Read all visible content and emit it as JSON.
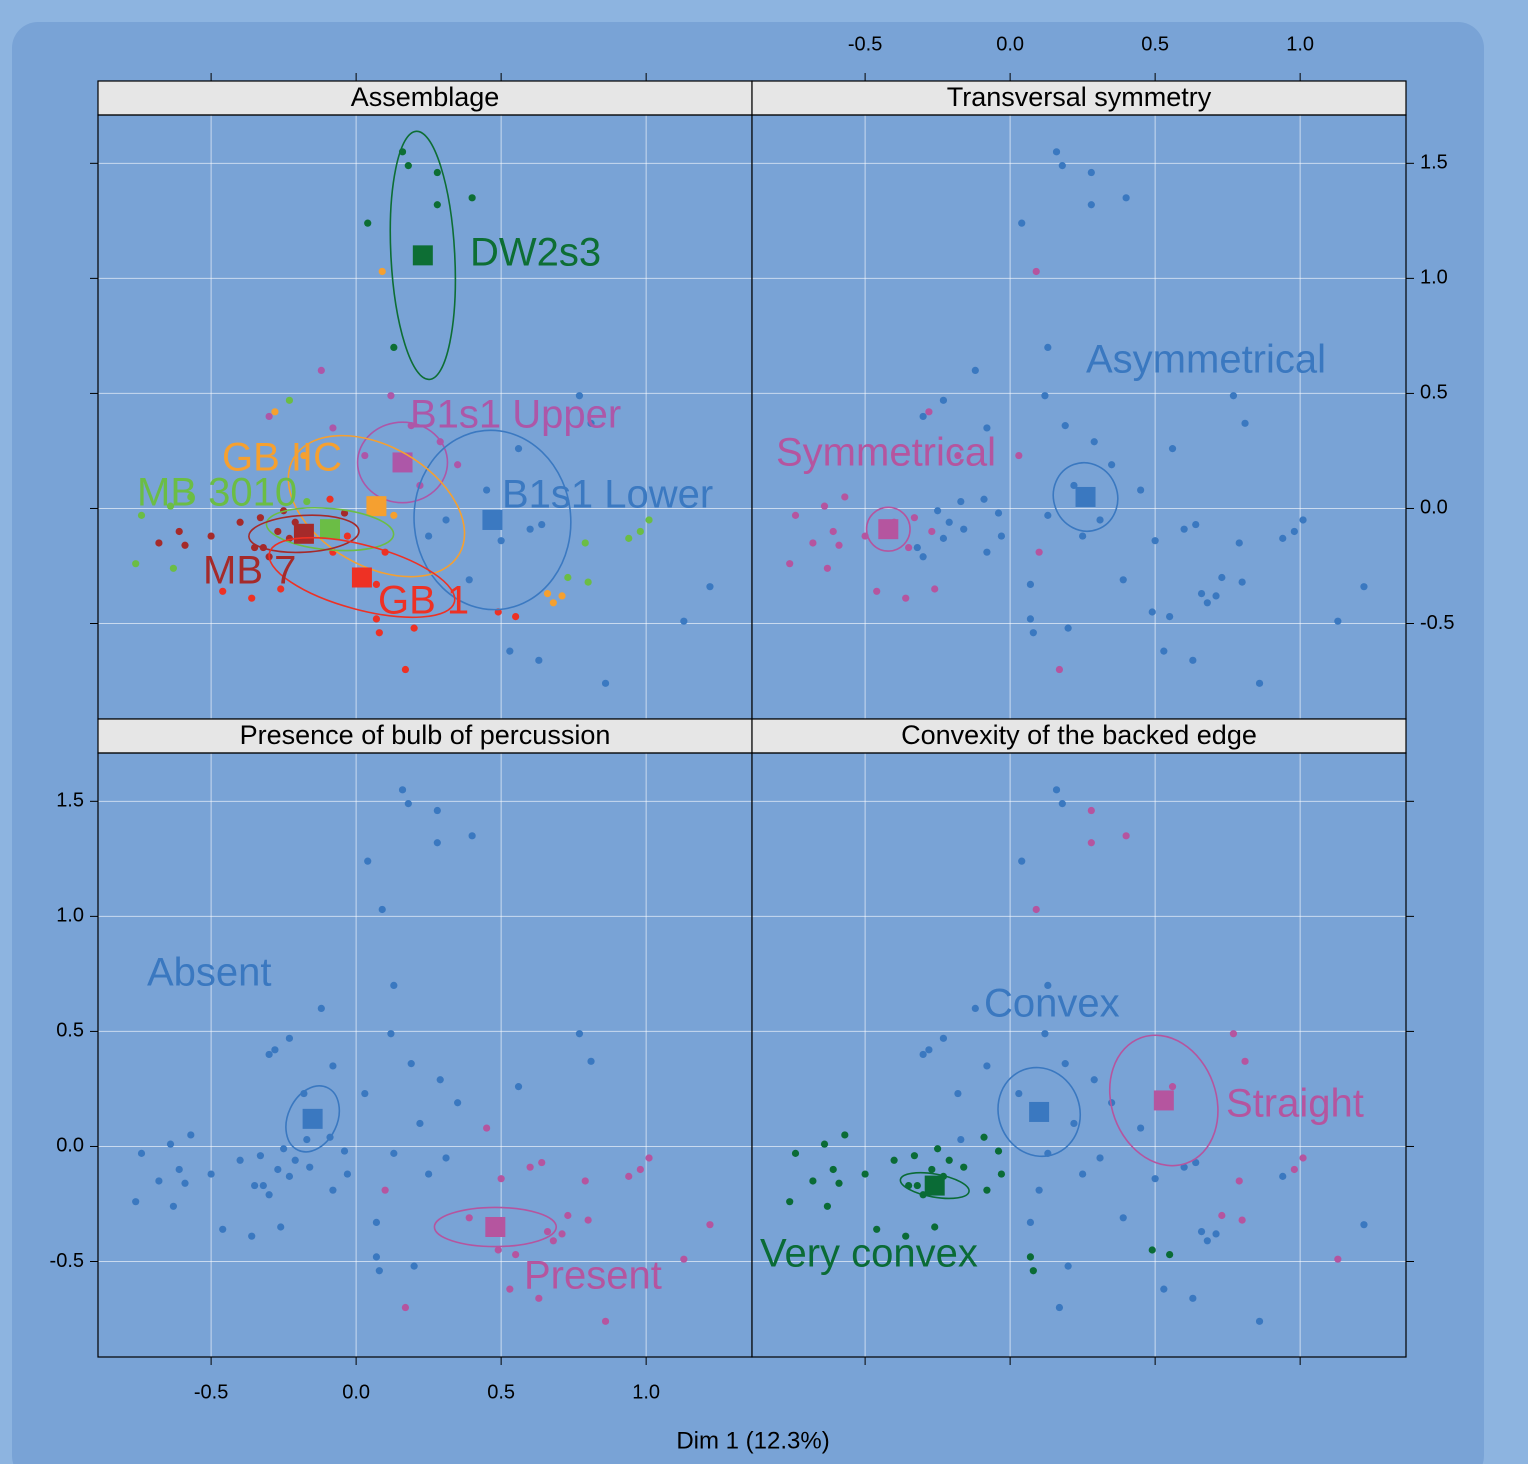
{
  "chart_data": [
    {
      "type": "scatter",
      "title": "Assemblage",
      "xlim": [
        -0.89,
        1.365
      ],
      "ylim": [
        -0.915,
        1.71
      ],
      "xticks": [
        -0.5,
        {
          "value": 0,
          "label": "0.0"
        },
        0.5,
        {
          "value": 1,
          "label": "1.0"
        }
      ],
      "yticks": [
        -0.5,
        {
          "value": 0,
          "label": "0.0"
        },
        0.5,
        {
          "value": 1,
          "label": "1.0"
        },
        1.5
      ],
      "grid": true,
      "series": [
        {
          "name": "DW2s3",
          "color": "#0d6e34",
          "x": [
            0.16,
            0.18,
            0.28,
            0.28,
            0.4,
            0.04,
            0.13
          ],
          "y": [
            1.55,
            1.49,
            1.46,
            1.32,
            1.35,
            1.24,
            0.7
          ],
          "center": [
            0.23,
            1.1
          ],
          "ellipse": {
            "rx": 0.11,
            "ry": 0.54,
            "angle": 3
          }
        },
        {
          "name": "B1s1 Upper",
          "color": "#ad57a8",
          "x": [
            -0.12,
            0.12,
            -0.3,
            -0.08,
            0.19,
            0.29,
            0.35,
            0.22,
            0.03
          ],
          "y": [
            0.6,
            0.49,
            0.4,
            0.35,
            0.36,
            0.29,
            0.19,
            0.1,
            0.23
          ],
          "center": [
            0.16,
            0.2
          ],
          "ellipse": {
            "rx": 0.155,
            "ry": 0.175,
            "angle": 0
          }
        },
        {
          "name": "B1s1 Lower",
          "color": "#3b79c1",
          "x": [
            0.77,
            0.81,
            0.56,
            0.45,
            0.31,
            0.25,
            0.6,
            0.64,
            0.5,
            0.39,
            0.53,
            0.63,
            0.86,
            1.13,
            1.22
          ],
          "y": [
            0.49,
            0.37,
            0.26,
            0.08,
            -0.05,
            -0.12,
            -0.09,
            -0.07,
            -0.14,
            -0.31,
            -0.62,
            -0.66,
            -0.76,
            -0.49,
            -0.34
          ],
          "center": [
            0.47,
            -0.05
          ],
          "ellipse": {
            "rx": 0.27,
            "ry": 0.39,
            "angle": 5
          }
        },
        {
          "name": "GB IIC",
          "color": "#f5a030",
          "x": [
            0.09,
            -0.28,
            -0.18,
            0.13,
            0.66,
            0.68,
            0.71
          ],
          "y": [
            1.03,
            0.42,
            0.23,
            -0.03,
            -0.37,
            -0.41,
            -0.38
          ],
          "center": [
            0.07,
            0.01
          ],
          "ellipse": {
            "rx": 0.33,
            "ry": 0.26,
            "angle": -30
          }
        },
        {
          "name": "MB 3010",
          "color": "#6bbd45",
          "x": [
            -0.57,
            -0.64,
            -0.74,
            -0.76,
            -0.63,
            -0.23,
            1.01,
            0.98,
            0.94,
            0.79,
            0.73,
            0.8,
            -0.17,
            -0.16
          ],
          "y": [
            0.05,
            0.01,
            -0.03,
            -0.24,
            -0.26,
            0.47,
            -0.05,
            -0.1,
            -0.13,
            -0.15,
            -0.3,
            -0.32,
            0.03,
            -0.09
          ],
          "center": [
            -0.09,
            -0.09
          ],
          "ellipse": {
            "rx": 0.22,
            "ry": 0.09,
            "angle": -5
          }
        },
        {
          "name": "MB 7",
          "color": "#a52a2a",
          "x": [
            -0.61,
            -0.68,
            -0.59,
            -0.5,
            -0.4,
            -0.35,
            -0.27,
            -0.33,
            -0.25,
            -0.04,
            -0.23,
            -0.21,
            -0.32,
            -0.3
          ],
          "y": [
            -0.1,
            -0.15,
            -0.16,
            -0.12,
            -0.06,
            -0.17,
            -0.1,
            -0.04,
            -0.01,
            -0.02,
            -0.13,
            -0.06,
            -0.17,
            -0.21
          ],
          "center": [
            -0.18,
            -0.11
          ],
          "ellipse": {
            "rx": 0.19,
            "ry": 0.08,
            "angle": 3
          }
        },
        {
          "name": "GB 1",
          "color": "#ee3124",
          "x": [
            -0.46,
            -0.36,
            -0.26,
            0.1,
            0.17,
            0.07,
            0.07,
            0.2,
            0.08,
            0.49,
            0.55,
            -0.08,
            -0.09,
            -0.03
          ],
          "y": [
            -0.36,
            -0.39,
            -0.35,
            -0.19,
            -0.7,
            -0.33,
            -0.48,
            -0.52,
            -0.54,
            -0.45,
            -0.47,
            -0.19,
            0.04,
            -0.12
          ],
          "center": [
            0.02,
            -0.3
          ],
          "ellipse": {
            "rx": 0.33,
            "ry": 0.14,
            "angle": -15
          }
        }
      ]
    },
    {
      "type": "scatter",
      "title": "Transversal symmetry",
      "xlim": [
        -0.89,
        1.365
      ],
      "ylim": [
        -0.915,
        1.71
      ],
      "xticks": [
        -0.5,
        {
          "value": 0,
          "label": "0.0"
        },
        0.5,
        {
          "value": 1,
          "label": "1.0"
        }
      ],
      "yticks": [
        -0.5,
        {
          "value": 0,
          "label": "0.0"
        },
        0.5,
        {
          "value": 1,
          "label": "1.0"
        },
        1.5
      ],
      "grid": true,
      "series": [
        {
          "name": "Asymmetrical",
          "color": "#3a78c0",
          "x": [
            0.16,
            0.18,
            0.28,
            0.28,
            0.4,
            0.04,
            0.13,
            -0.12,
            0.12,
            0.77,
            0.81,
            -0.23,
            -0.3,
            -0.08,
            0.19,
            0.29,
            0.35,
            0.56,
            0.22,
            0.45,
            0.31,
            0.13,
            0.25,
            0.6,
            0.64,
            1.01,
            0.98,
            0.94,
            0.79,
            0.5,
            0.07,
            0.07,
            0.2,
            0.08,
            0.39,
            0.49,
            0.55,
            0.73,
            0.8,
            0.66,
            0.68,
            0.71,
            0.53,
            0.63,
            0.86,
            1.13,
            1.22,
            -0.08,
            -0.17,
            -0.25,
            -0.04,
            -0.09,
            -0.16,
            -0.23,
            -0.21,
            -0.32,
            -0.3,
            -0.03
          ],
          "y": [
            1.55,
            1.49,
            1.46,
            1.32,
            1.35,
            1.24,
            0.7,
            0.6,
            0.49,
            0.49,
            0.37,
            0.47,
            0.4,
            0.35,
            0.36,
            0.29,
            0.19,
            0.26,
            0.1,
            0.08,
            -0.05,
            -0.03,
            -0.12,
            -0.09,
            -0.07,
            -0.05,
            -0.1,
            -0.13,
            -0.15,
            -0.14,
            -0.33,
            -0.48,
            -0.52,
            -0.54,
            -0.31,
            -0.45,
            -0.47,
            -0.3,
            -0.32,
            -0.37,
            -0.41,
            -0.38,
            -0.62,
            -0.66,
            -0.76,
            -0.49,
            -0.34,
            -0.19,
            0.03,
            -0.01,
            -0.02,
            0.04,
            -0.09,
            -0.13,
            -0.06,
            -0.17,
            -0.21,
            -0.12
          ],
          "center": [
            0.26,
            0.05
          ],
          "ellipse": {
            "rx": 0.11,
            "ry": 0.15,
            "angle": 20
          }
        },
        {
          "name": "Symmetrical",
          "color": "#b5559f",
          "x": [
            0.09,
            -0.28,
            -0.18,
            -0.57,
            -0.64,
            -0.74,
            -0.61,
            -0.68,
            -0.59,
            -0.76,
            -0.63,
            -0.5,
            -0.4,
            -0.35,
            -0.46,
            -0.36,
            -0.26,
            0.1,
            0.17,
            -0.27,
            -0.33,
            0.03
          ],
          "y": [
            1.03,
            0.42,
            0.23,
            0.05,
            0.01,
            -0.03,
            -0.1,
            -0.15,
            -0.16,
            -0.24,
            -0.26,
            -0.12,
            -0.06,
            -0.17,
            -0.36,
            -0.39,
            -0.35,
            -0.19,
            -0.7,
            -0.1,
            -0.04,
            0.23
          ],
          "center": [
            -0.42,
            -0.09
          ],
          "ellipse": {
            "rx": 0.075,
            "ry": 0.095,
            "angle": 0
          }
        }
      ]
    },
    {
      "type": "scatter",
      "title": "Presence of bulb of percussion",
      "xlabel": "Dim 1 (12.3%)",
      "xlim": [
        -0.89,
        1.365
      ],
      "ylim": [
        -0.915,
        1.71
      ],
      "xticks": [
        -0.5,
        {
          "value": 0,
          "label": "0.0"
        },
        0.5,
        {
          "value": 1,
          "label": "1.0"
        }
      ],
      "yticks": [
        -0.5,
        {
          "value": 0,
          "label": "0.0"
        },
        0.5,
        {
          "value": 1,
          "label": "1.0"
        },
        1.5
      ],
      "grid": true,
      "series": [
        {
          "name": "Absent",
          "color": "#3a78c0",
          "x": [
            0.16,
            0.18,
            0.28,
            0.28,
            0.4,
            0.04,
            0.13,
            -0.12,
            0.12,
            0.77,
            0.81,
            -0.23,
            -0.3,
            -0.08,
            0.19,
            0.29,
            0.35,
            0.56,
            0.22,
            0.31,
            0.13,
            0.25,
            0.07,
            0.07,
            0.2,
            0.08,
            -0.08,
            -0.17,
            -0.25,
            -0.04,
            -0.09,
            -0.16,
            -0.23,
            -0.21,
            -0.32,
            -0.3,
            -0.03,
            0.09,
            -0.28,
            -0.18,
            -0.57,
            -0.64,
            -0.74,
            -0.61,
            -0.68,
            -0.59,
            -0.76,
            -0.63,
            -0.5,
            -0.4,
            -0.35,
            -0.46,
            -0.36,
            -0.26,
            -0.27,
            -0.33,
            0.03
          ],
          "y": [
            1.55,
            1.49,
            1.46,
            1.32,
            1.35,
            1.24,
            0.7,
            0.6,
            0.49,
            0.49,
            0.37,
            0.47,
            0.4,
            0.35,
            0.36,
            0.29,
            0.19,
            0.26,
            0.1,
            -0.05,
            -0.03,
            -0.12,
            -0.33,
            -0.48,
            -0.52,
            -0.54,
            -0.19,
            0.03,
            -0.01,
            -0.02,
            0.04,
            -0.09,
            -0.13,
            -0.06,
            -0.17,
            -0.21,
            -0.12,
            1.03,
            0.42,
            0.23,
            0.05,
            0.01,
            -0.03,
            -0.1,
            -0.15,
            -0.16,
            -0.24,
            -0.26,
            -0.12,
            -0.06,
            -0.17,
            -0.36,
            -0.39,
            -0.35,
            -0.1,
            -0.04,
            0.23
          ],
          "center": [
            -0.15,
            0.12
          ],
          "ellipse": {
            "rx": 0.085,
            "ry": 0.15,
            "angle": -25
          }
        },
        {
          "name": "Present",
          "color": "#b5559f",
          "x": [
            0.45,
            0.6,
            0.64,
            1.01,
            0.98,
            0.94,
            0.79,
            0.5,
            0.39,
            0.49,
            0.55,
            0.73,
            0.8,
            0.66,
            0.68,
            0.71,
            0.53,
            0.63,
            0.86,
            1.13,
            1.22,
            0.1,
            0.17
          ],
          "y": [
            0.08,
            -0.09,
            -0.07,
            -0.05,
            -0.1,
            -0.13,
            -0.15,
            -0.14,
            -0.31,
            -0.45,
            -0.47,
            -0.3,
            -0.32,
            -0.37,
            -0.41,
            -0.38,
            -0.62,
            -0.66,
            -0.76,
            -0.49,
            -0.34,
            -0.19,
            -0.7
          ],
          "center": [
            0.48,
            -0.35
          ],
          "ellipse": {
            "rx": 0.21,
            "ry": 0.085,
            "angle": 0
          }
        }
      ]
    },
    {
      "type": "scatter",
      "title": "Convexity of the backed edge",
      "xlim": [
        -0.89,
        1.365
      ],
      "ylim": [
        -0.915,
        1.71
      ],
      "xticks": [
        -0.5,
        {
          "value": 0,
          "label": "0.0"
        },
        0.5,
        {
          "value": 1,
          "label": "1.0"
        }
      ],
      "yticks": [
        -0.5,
        {
          "value": 0,
          "label": "0.0"
        },
        0.5,
        {
          "value": 1,
          "label": "1.0"
        },
        1.5
      ],
      "grid": true,
      "series": [
        {
          "name": "Very convex",
          "color": "#0a6b36",
          "x": [
            -0.57,
            -0.64,
            -0.74,
            -0.61,
            -0.68,
            -0.59,
            -0.76,
            -0.63,
            -0.5,
            -0.4,
            -0.35,
            -0.46,
            -0.36,
            -0.26,
            -0.27,
            -0.33,
            -0.08,
            -0.25,
            -0.04,
            -0.09,
            -0.16,
            -0.23,
            -0.21,
            -0.32,
            -0.3,
            -0.03,
            0.07,
            0.08,
            0.49,
            0.55
          ],
          "y": [
            0.05,
            0.01,
            -0.03,
            -0.1,
            -0.15,
            -0.16,
            -0.24,
            -0.26,
            -0.12,
            -0.06,
            -0.17,
            -0.36,
            -0.39,
            -0.35,
            -0.1,
            -0.04,
            -0.19,
            -0.01,
            -0.02,
            0.04,
            -0.09,
            -0.13,
            -0.06,
            -0.17,
            -0.21,
            -0.12,
            -0.48,
            -0.54,
            -0.45,
            -0.47
          ],
          "center": [
            -0.26,
            -0.17
          ],
          "ellipse": {
            "rx": 0.12,
            "ry": 0.05,
            "angle": -10
          }
        },
        {
          "name": "Convex",
          "color": "#3a78c0",
          "x": [
            0.16,
            0.18,
            0.04,
            0.13,
            -0.12,
            0.12,
            -0.23,
            -0.3,
            -0.08,
            0.19,
            0.29,
            0.35,
            0.22,
            0.45,
            0.31,
            0.13,
            0.25,
            0.6,
            0.64,
            0.94,
            0.5,
            0.07,
            0.2,
            0.39,
            0.66,
            0.68,
            0.71,
            0.53,
            0.63,
            0.86,
            1.22,
            -0.17,
            -0.28,
            -0.18,
            0.1,
            0.17,
            0.03
          ],
          "y": [
            1.55,
            1.49,
            1.24,
            0.7,
            0.6,
            0.49,
            0.47,
            0.4,
            0.35,
            0.36,
            0.29,
            0.19,
            0.1,
            0.08,
            -0.05,
            -0.03,
            -0.12,
            -0.09,
            -0.07,
            -0.13,
            -0.14,
            -0.33,
            -0.52,
            -0.31,
            -0.37,
            -0.41,
            -0.38,
            -0.62,
            -0.66,
            -0.76,
            -0.34,
            0.03,
            0.42,
            0.23,
            -0.19,
            -0.7,
            0.23
          ],
          "center": [
            0.1,
            0.15
          ],
          "ellipse": {
            "rx": 0.14,
            "ry": 0.195,
            "angle": 20
          }
        },
        {
          "name": "Straight",
          "color": "#b5559f",
          "x": [
            0.09,
            0.28,
            0.28,
            0.4,
            0.77,
            0.81,
            0.56,
            1.01,
            0.98,
            0.79,
            0.73,
            0.8,
            1.13
          ],
          "y": [
            1.03,
            1.46,
            1.32,
            1.35,
            0.49,
            0.37,
            0.26,
            -0.05,
            -0.1,
            -0.15,
            -0.3,
            -0.32,
            -0.49
          ],
          "center": [
            0.53,
            0.2
          ],
          "ellipse": {
            "rx": 0.18,
            "ry": 0.29,
            "angle": 20
          }
        }
      ]
    }
  ]
}
